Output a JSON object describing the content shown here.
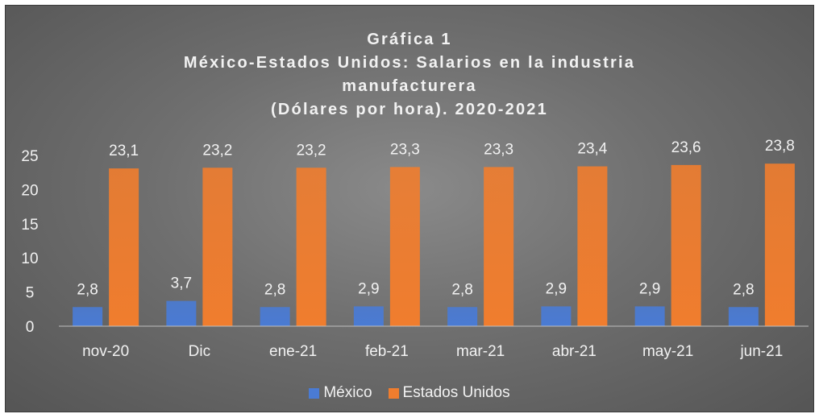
{
  "chart_data": {
    "type": "bar",
    "title_lines": [
      "Gráfica 1",
      "México-Estados Unidos: Salarios en la industria",
      "manufacturera",
      "(Dólares por hora). 2020-2021"
    ],
    "categories": [
      "nov-20",
      "Dic",
      "ene-21",
      "feb-21",
      "mar-21",
      "abr-21",
      "may-21",
      "jun-21"
    ],
    "series": [
      {
        "name": "México",
        "color": "#4a7bd4",
        "values": [
          2.8,
          3.7,
          2.8,
          2.9,
          2.8,
          2.9,
          2.9,
          2.8
        ],
        "labels": [
          "2,8",
          "3,7",
          "2,8",
          "2,9",
          "2,8",
          "2,9",
          "2,9",
          "2,8"
        ]
      },
      {
        "name": "Estados Unidos",
        "color": "#f07d2e",
        "values": [
          23.1,
          23.2,
          23.2,
          23.3,
          23.3,
          23.4,
          23.6,
          23.8
        ],
        "labels": [
          "23,1",
          "23,2",
          "23,2",
          "23,3",
          "23,3",
          "23,4",
          "23,6",
          "23,8"
        ]
      }
    ],
    "yticks": [
      "0",
      "5",
      "10",
      "15",
      "20",
      "25"
    ],
    "ylim": [
      0,
      25
    ],
    "grid": false,
    "legend_position": "bottom"
  }
}
